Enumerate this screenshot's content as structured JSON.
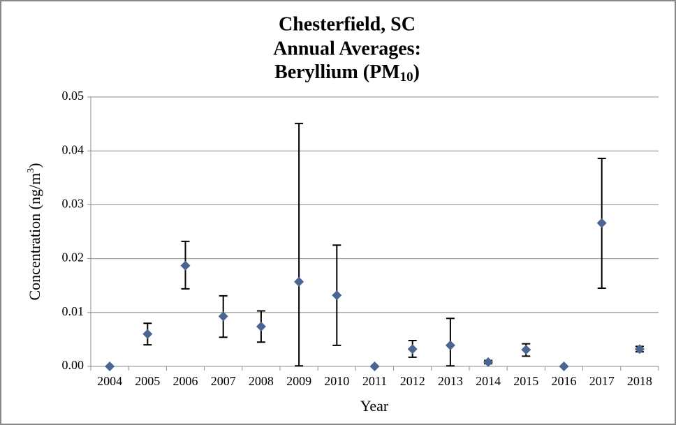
{
  "chart_data": {
    "type": "scatter",
    "title": [
      "Chesterfield, SC",
      "Annual Averages:",
      [
        "Beryllium (PM",
        "10",
        ")"
      ]
    ],
    "x_label": "Year",
    "y_label": [
      "Concentration (ng/m",
      "3",
      ")"
    ],
    "categories": [
      "2004",
      "2005",
      "2006",
      "2007",
      "2008",
      "2009",
      "2010",
      "2011",
      "2012",
      "2013",
      "2014",
      "2015",
      "2016",
      "2017",
      "2018"
    ],
    "values": [
      0,
      0.006,
      0.0187,
      0.0093,
      0.0074,
      0.0157,
      0.0132,
      0,
      0.0032,
      0.0039,
      0.0008,
      0.0031,
      0,
      0.0266,
      0.0032
    ],
    "error_plus": [
      null,
      0.002,
      0.0045,
      0.0038,
      0.0029,
      0.0294,
      0.0093,
      null,
      0.0016,
      0.005,
      0.0003,
      0.0011,
      null,
      0.012,
      0.0005
    ],
    "error_minus": [
      null,
      0.002,
      0.0043,
      0.0039,
      0.0029,
      0.0156,
      0.0093,
      null,
      0.0015,
      0.0038,
      0.0003,
      0.0012,
      null,
      0.0121,
      0.0005
    ],
    "color": "#4a6591",
    "ylim": [
      0,
      0.05
    ],
    "yticks": [
      {
        "value": 0,
        "label": "0.00"
      },
      0.01,
      0.02,
      0.03,
      0.04,
      0.05
    ],
    "grid": true
  }
}
